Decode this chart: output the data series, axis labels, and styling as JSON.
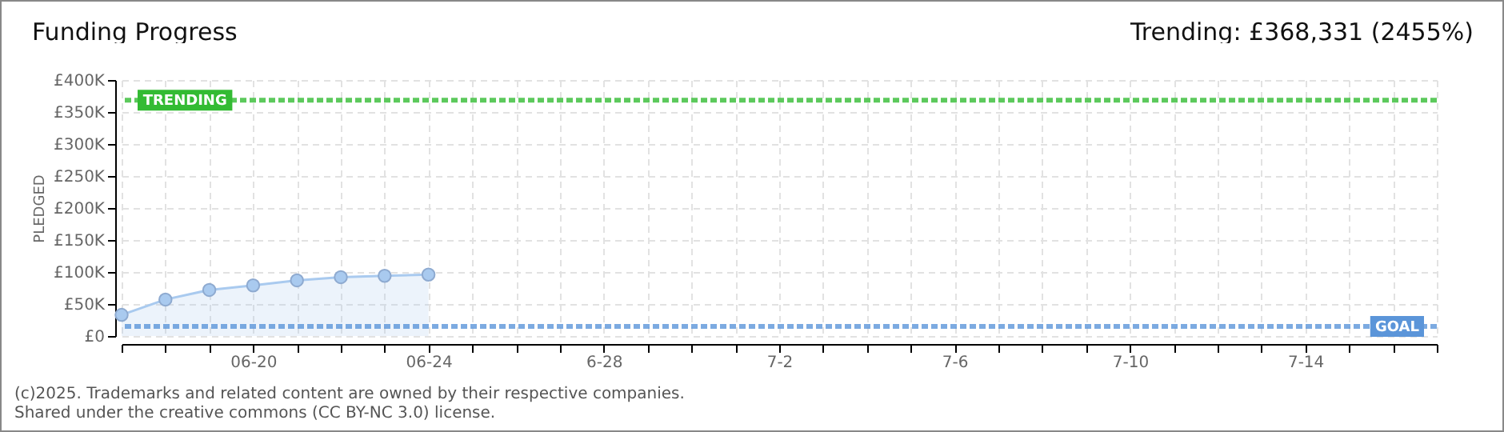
{
  "chart_data": {
    "type": "area",
    "title": "Funding Progress",
    "subtitle": "Trending: £368,331 (2455%)",
    "ylabel": "PLEDGED",
    "x": [
      "--06-17",
      "--06-18",
      "--06-19",
      "--06-20",
      "--06-21",
      "--06-22",
      "--06-23",
      "--06-24"
    ],
    "series": [
      {
        "color": "#a9caef",
        "values": [
          33000,
          57000,
          72000,
          79000,
          87000,
          92000,
          94000,
          96000
        ]
      }
    ],
    "xlim": [
      "--06-17",
      "--07-17"
    ],
    "xticks": [
      {
        "value": "--06-17",
        "label": null
      },
      {
        "value": "--06-18",
        "label": null
      },
      {
        "value": "--06-19",
        "label": null
      },
      {
        "value": "--06-20",
        "label": "06-20"
      },
      {
        "value": "--06-21",
        "label": null
      },
      {
        "value": "--06-22",
        "label": null
      },
      {
        "value": "--06-23",
        "label": null
      },
      {
        "value": "--06-24",
        "label": "06-24"
      },
      {
        "value": "--06-25",
        "label": null
      },
      {
        "value": "--06-26",
        "label": null
      },
      {
        "value": "--06-27",
        "label": null
      },
      {
        "value": "--06-28",
        "label": "6-28"
      },
      {
        "value": "--06-29",
        "label": null
      },
      {
        "value": "--06-30",
        "label": null
      },
      {
        "value": "--07-01",
        "label": null
      },
      {
        "value": "--07-02",
        "label": "7-2"
      },
      {
        "value": "--07-03",
        "label": null
      },
      {
        "value": "--07-04",
        "label": null
      },
      {
        "value": "--07-05",
        "label": null
      },
      {
        "value": "--07-06",
        "label": "7-6"
      },
      {
        "value": "--07-07",
        "label": null
      },
      {
        "value": "--07-08",
        "label": null
      },
      {
        "value": "--07-09",
        "label": null
      },
      {
        "value": "--07-10",
        "label": "7-10"
      },
      {
        "value": "--07-11",
        "label": null
      },
      {
        "value": "--07-12",
        "label": null
      },
      {
        "value": "--07-13",
        "label": null
      },
      {
        "value": "--07-14",
        "label": "7-14"
      },
      {
        "value": "--07-15",
        "label": null
      },
      {
        "value": "--07-16",
        "label": null
      },
      {
        "value": "--07-17",
        "label": null
      }
    ],
    "ylim": [
      0,
      400000
    ],
    "yticks": [
      {
        "value": 0,
        "label": "£0"
      },
      {
        "value": 50000,
        "label": "£50K"
      },
      {
        "value": 100000,
        "label": "£100K"
      },
      {
        "value": 150000,
        "label": "£150K"
      },
      {
        "value": 200000,
        "label": "£200K"
      },
      {
        "value": 250000,
        "label": "£250K"
      },
      {
        "value": 300000,
        "label": "£300K"
      },
      {
        "value": 350000,
        "label": "£350K"
      },
      {
        "value": 400000,
        "label": "£400K"
      }
    ],
    "ref_lines": [
      {
        "axis": "y",
        "value": 368331,
        "label": "TRENDING",
        "color": "#33bb33",
        "line_style": "dashed"
      },
      {
        "axis": "y",
        "value": 15000,
        "label": "GOAL",
        "color": "#5b95d9",
        "line_style": "dashed"
      }
    ],
    "grid": true,
    "marker": "circle",
    "line_style": "solid",
    "annotations": [
      "(c)2025. Trademarks and related content are owned by their respective companies.",
      "Shared under the creative commons (CC BY-NC 3.0) license."
    ]
  }
}
